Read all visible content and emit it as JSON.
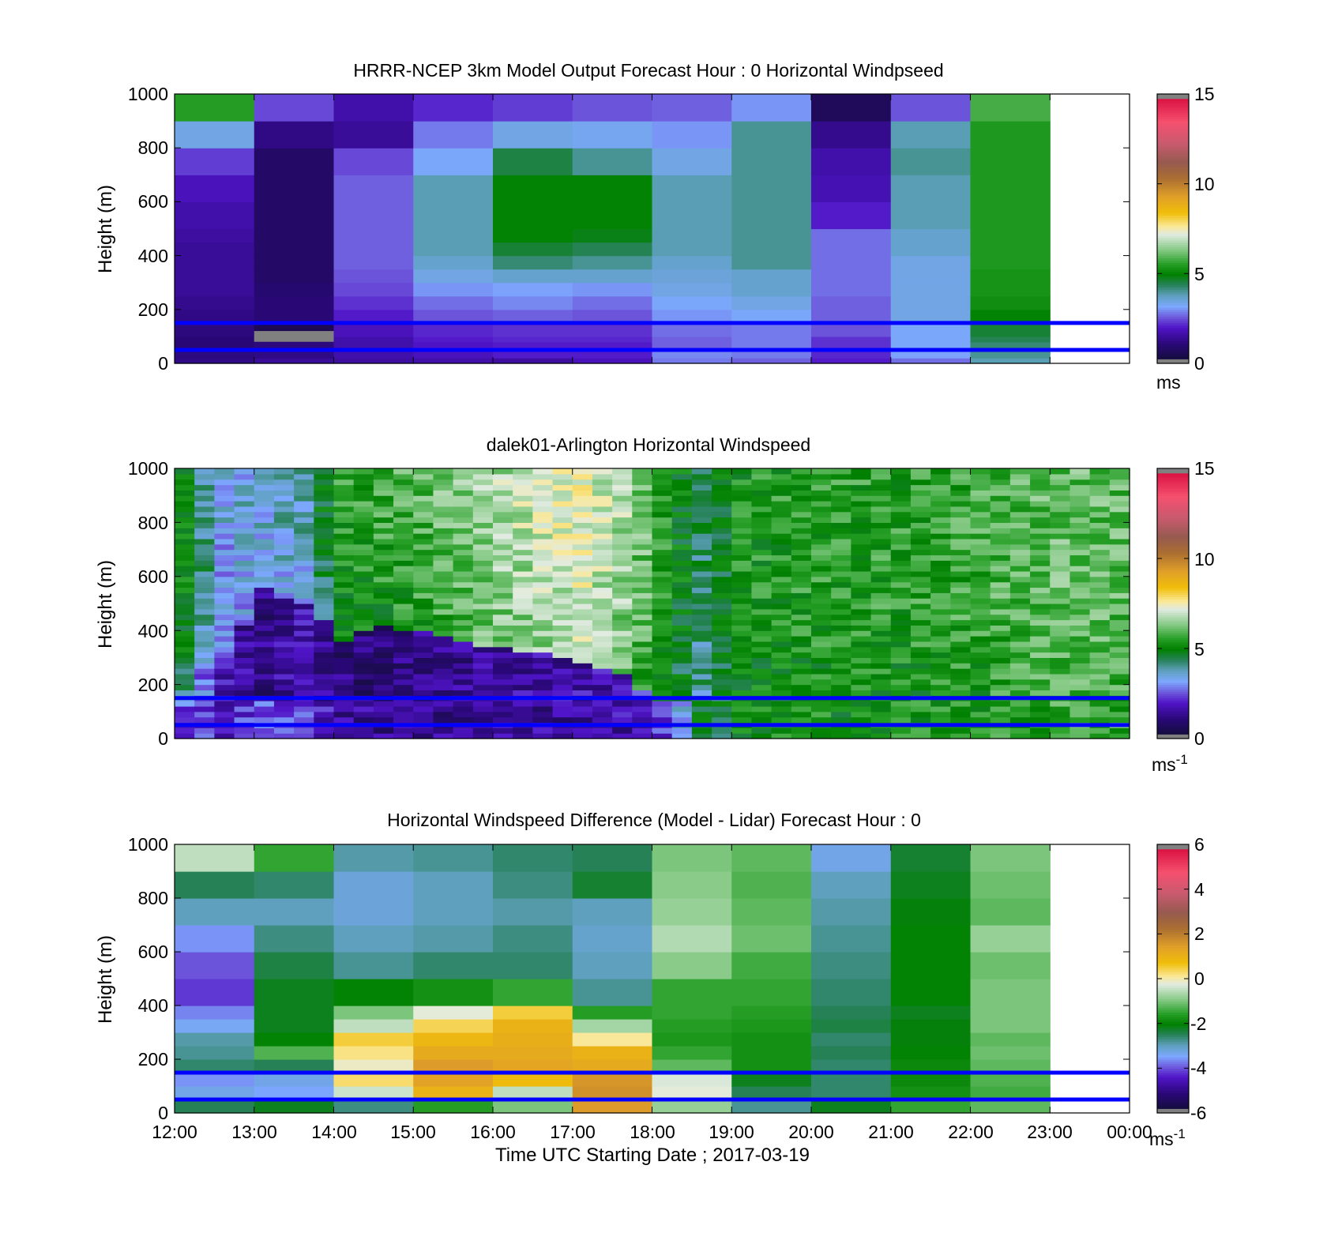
{
  "figure": {
    "xlabel": "Time UTC  Starting Date ; 2017-03-19",
    "x_ticks": [
      "12:00",
      "13:00",
      "14:00",
      "15:00",
      "16:00",
      "17:00",
      "18:00",
      "19:00",
      "20:00",
      "21:00",
      "22:00",
      "23:00",
      "00:00"
    ]
  },
  "chart_data": [
    {
      "type": "heatmap",
      "title": "HRRR-NCEP 3km Model Output   Forecast Hour : 0 Horizontal Windpseed",
      "ylabel": "Height (m)",
      "xlim": [
        "12:00",
        "00:00"
      ],
      "ylim": [
        0,
        1000
      ],
      "y_ticks": [
        "0",
        "200",
        "400",
        "600",
        "800",
        "1000"
      ],
      "colorbar": {
        "min": 0,
        "max": 15,
        "ticks": [
          "0",
          "5",
          "10",
          "15"
        ],
        "unit": "ms"
      },
      "reference_lines_m": [
        50,
        150
      ],
      "reference_line_color": "#0000ff",
      "columns": 11,
      "height_bounds_m": [
        0,
        20,
        50,
        80,
        100,
        150,
        200,
        250,
        300,
        350,
        400,
        450,
        500,
        600,
        700,
        800,
        900,
        1000
      ],
      "values_by_column": [
        [
          1.2,
          1.1,
          1.0,
          1.0,
          1.1,
          1.2,
          1.3,
          1.4,
          1.4,
          1.4,
          1.4,
          1.5,
          1.6,
          1.8,
          2.3,
          3.4,
          5.5
        ],
        [
          1.4,
          1.2,
          1.1,
          1.0,
          0.5,
          1.0,
          1.0,
          0.9,
          0.8,
          0.8,
          0.8,
          0.8,
          0.8,
          0.8,
          0.8,
          1.2,
          2.4
        ],
        [
          1.5,
          1.6,
          1.6,
          1.6,
          1.8,
          2.0,
          2.2,
          2.4,
          2.5,
          2.6,
          2.6,
          2.6,
          2.6,
          2.6,
          2.4,
          1.4,
          1.6
        ],
        [
          1.6,
          1.8,
          1.9,
          2.0,
          2.1,
          2.5,
          2.7,
          3.0,
          3.4,
          3.6,
          3.8,
          3.8,
          3.8,
          3.8,
          3.2,
          2.8,
          2.1
        ],
        [
          1.5,
          2.0,
          2.0,
          2.1,
          2.2,
          2.6,
          2.9,
          3.1,
          3.6,
          4.2,
          4.6,
          5.0,
          5.0,
          5.0,
          4.5,
          3.4,
          2.3
        ],
        [
          1.8,
          2.0,
          2.0,
          2.1,
          2.2,
          2.5,
          2.7,
          3.0,
          3.6,
          4.0,
          4.4,
          4.8,
          5.0,
          5.0,
          4.0,
          3.3,
          2.5
        ],
        [
          2.8,
          2.9,
          2.6,
          2.6,
          2.7,
          3.0,
          3.2,
          3.4,
          3.5,
          3.6,
          3.8,
          3.8,
          3.8,
          3.8,
          3.4,
          3.0,
          2.6
        ],
        [
          2.6,
          2.8,
          2.8,
          2.8,
          2.8,
          3.2,
          3.4,
          3.6,
          3.6,
          4.0,
          4.0,
          4.0,
          4.0,
          4.0,
          4.0,
          4.0,
          3.0
        ],
        [
          2.0,
          2.1,
          2.2,
          2.2,
          2.5,
          2.6,
          2.6,
          2.7,
          2.7,
          2.7,
          2.7,
          2.7,
          2.0,
          1.7,
          1.6,
          1.3,
          0.6
        ],
        [
          2.7,
          3.1,
          3.2,
          3.2,
          3.2,
          3.4,
          3.4,
          3.4,
          3.4,
          3.4,
          3.6,
          3.6,
          3.8,
          3.8,
          4.0,
          3.8,
          2.5
        ],
        [
          3.8,
          4.0,
          4.2,
          4.4,
          4.6,
          5.0,
          5.2,
          5.3,
          5.3,
          5.4,
          5.4,
          5.4,
          5.4,
          5.4,
          5.4,
          5.4,
          5.8
        ]
      ],
      "missing": [
        {
          "column": 1,
          "from_m": 80,
          "to_m": 120
        }
      ]
    },
    {
      "type": "heatmap",
      "title": "dalek01-Arlington  Horizontal Windspeed",
      "ylabel": "Height (m)",
      "xlim": [
        "12:00",
        "00:00"
      ],
      "ylim": [
        0,
        1000
      ],
      "y_ticks": [
        "0",
        "200",
        "400",
        "600",
        "800",
        "1000"
      ],
      "colorbar": {
        "min": 0,
        "max": 15,
        "ticks": [
          "0",
          "5",
          "10",
          "15"
        ],
        "unit": "ms",
        "unit_exponent": "-1"
      },
      "reference_lines_m": [
        50,
        150
      ],
      "reference_line_color": "#0000ff",
      "time_start_hour": 12,
      "time_end_hour": 23.83,
      "time_step_min": 15,
      "profile_keypoints": {
        "hours": [
          12.0,
          12.5,
          13.0,
          13.5,
          14.0,
          14.5,
          15.0,
          15.5,
          16.0,
          16.5,
          17.0,
          17.5,
          18.0,
          18.5,
          19.0,
          20.0,
          21.0,
          22.0,
          23.0,
          23.8
        ],
        "low_layer_ms_0_150m": [
          2.5,
          2.0,
          2.6,
          2.2,
          1.5,
          1.3,
          1.3,
          1.3,
          1.4,
          1.4,
          1.4,
          1.6,
          2.2,
          4.5,
          5.0,
          5.2,
          5.2,
          5.4,
          5.6,
          5.6
        ],
        "inversion_top_m": [
          260,
          300,
          560,
          500,
          370,
          420,
          400,
          360,
          340,
          320,
          280,
          240,
          120,
          0,
          0,
          0,
          0,
          0,
          0,
          0
        ],
        "layer_below_top_ms": [
          4.0,
          1.6,
          1.2,
          1.7,
          1.1,
          1.0,
          1.3,
          1.3,
          1.4,
          1.5,
          1.6,
          1.9,
          2.2,
          4.8,
          5.0,
          5.2,
          5.2,
          5.4,
          5.6,
          5.6
        ],
        "above_layer_ms": [
          4.6,
          2.8,
          3.2,
          3.4,
          5.0,
          5.2,
          5.4,
          5.8,
          6.2,
          6.5,
          6.8,
          6.2,
          5.0,
          3.8,
          4.8,
          5.0,
          5.0,
          5.2,
          5.6,
          5.5
        ]
      }
    },
    {
      "type": "heatmap",
      "title": "Horizontal Windspeed Difference (Model - Lidar) Forecast Hour : 0",
      "ylabel": "Height (m)",
      "xlim": [
        "12:00",
        "00:00"
      ],
      "ylim": [
        0,
        1000
      ],
      "y_ticks": [
        "0",
        "200",
        "400",
        "600",
        "800",
        "1000"
      ],
      "colorbar": {
        "min": -6,
        "max": 6,
        "ticks": [
          "-6",
          "-4",
          "-2",
          "0",
          "2",
          "4",
          "6"
        ],
        "unit": "ms",
        "unit_exponent": "-1"
      },
      "reference_lines_m": [
        50,
        150
      ],
      "reference_line_color": "#0000ff",
      "columns": 11,
      "height_bounds_m": [
        0,
        50,
        100,
        150,
        200,
        250,
        300,
        350,
        400,
        500,
        600,
        700,
        800,
        900,
        1000
      ],
      "values_by_column": [
        [
          -2.5,
          -3.3,
          -3.6,
          -2.6,
          -2.8,
          -2.9,
          -3.4,
          -3.7,
          -4.2,
          -4.0,
          -3.6,
          -3.0,
          -2.5,
          -0.5,
          1.5
        ],
        [
          -2.2,
          -3.5,
          -3.3,
          -2.5,
          -1.3,
          -2.0,
          -2.2,
          -2.2,
          -2.2,
          -2.4,
          -2.7,
          -3.0,
          -2.6,
          -1.5,
          -0.3
        ],
        [
          -2.7,
          -0.4,
          0.3,
          -0.1,
          0.2,
          0.5,
          -0.5,
          -1.0,
          -2.0,
          -2.8,
          -3.0,
          -3.2,
          -3.2,
          -2.9,
          -2.9
        ],
        [
          -1.6,
          1.0,
          1.4,
          1.5,
          1.2,
          0.9,
          0.4,
          -0.2,
          -1.8,
          -2.6,
          -2.9,
          -3.0,
          -3.0,
          -2.8,
          -3.1
        ],
        [
          -1.0,
          -0.5,
          0.8,
          1.3,
          1.2,
          1.1,
          1.0,
          0.5,
          -1.5,
          -2.6,
          -2.7,
          -2.9,
          -2.7,
          -2.6,
          -2.8
        ],
        [
          1.5,
          1.7,
          1.6,
          1.2,
          1.0,
          0.1,
          -0.7,
          -1.6,
          -2.8,
          -3.0,
          -3.1,
          -3.0,
          -2.3,
          -2.5,
          -2.7
        ],
        [
          -0.8,
          -0.2,
          -0.3,
          -1.2,
          -1.5,
          -1.7,
          -1.6,
          -1.5,
          -1.5,
          -0.9,
          -0.6,
          -0.8,
          -0.9,
          -1.0,
          -1.3
        ],
        [
          -2.8,
          -2.5,
          -2.2,
          -1.8,
          -1.8,
          -1.8,
          -1.7,
          -1.6,
          -1.5,
          -1.4,
          -1.1,
          -1.2,
          -1.3,
          -1.2,
          -1.4
        ],
        [
          -2.2,
          -2.6,
          -2.6,
          -2.6,
          -2.5,
          -2.6,
          -2.4,
          -2.5,
          -2.6,
          -2.7,
          -2.8,
          -2.9,
          -3.0,
          -3.3,
          -3.5
        ],
        [
          -1.5,
          -1.8,
          -1.9,
          -1.9,
          -2.0,
          -2.1,
          -2.1,
          -2.2,
          -2.0,
          -2.0,
          -2.0,
          -2.1,
          -2.2,
          -2.3,
          -2.6
        ],
        [
          -1.2,
          -1.4,
          -1.3,
          -1.2,
          -1.1,
          -1.2,
          -1.0,
          -1.0,
          -1.0,
          -1.1,
          -0.8,
          -1.2,
          -1.1,
          -1.0,
          -1.2
        ]
      ]
    }
  ]
}
